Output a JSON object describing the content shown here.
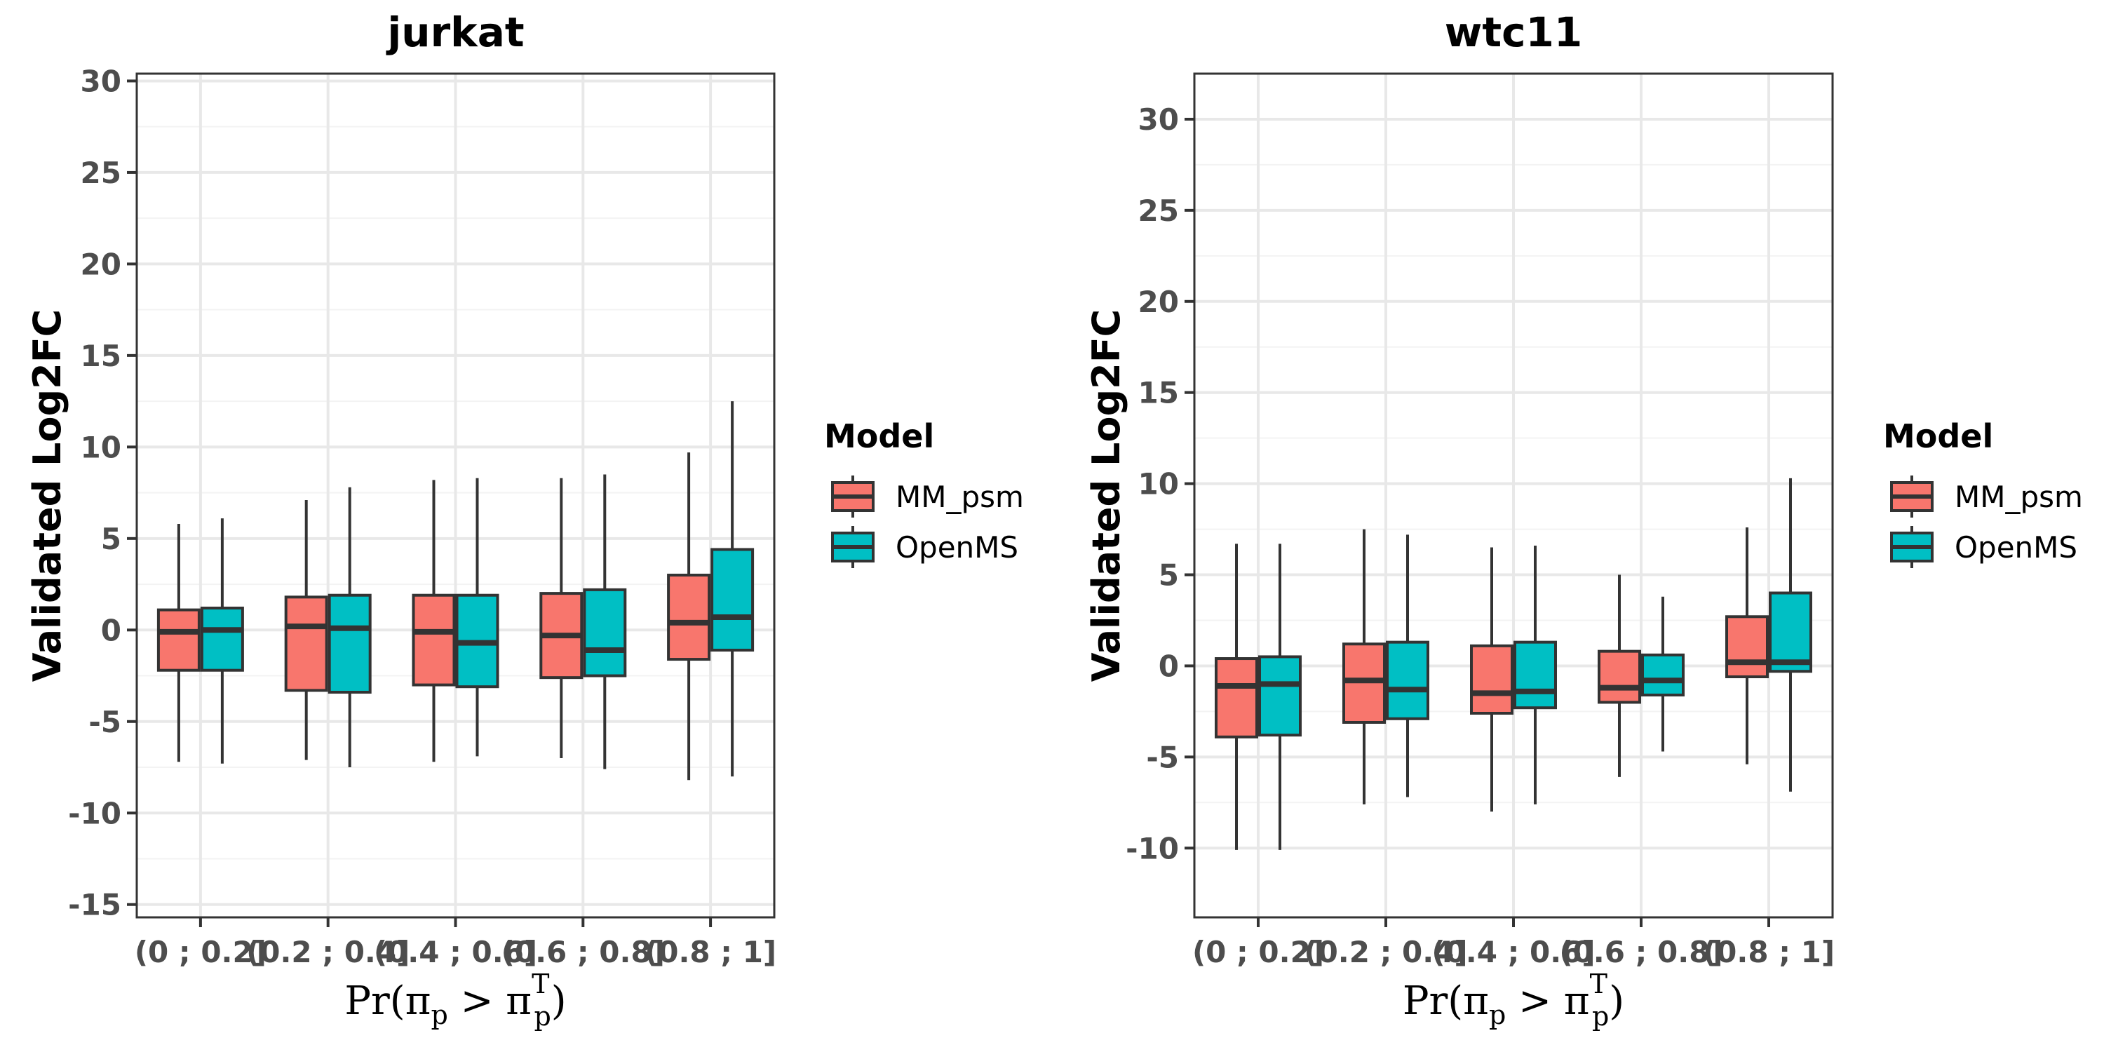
{
  "colors": {
    "MM_psm": "#F8766D",
    "OpenMS": "#00BFC4",
    "box_stroke": "#333333",
    "grid_major": "#e8e8e8",
    "grid_minor": "#f3f3f3",
    "panel_border": "#333333",
    "tick_text": "#4d4d4d"
  },
  "chart_data": [
    {
      "type": "boxplot",
      "title": "jurkat",
      "ylabel": "Validated Log2FC",
      "xlabel": {
        "main": "Pr(π",
        "sub1": "p",
        "mid": " > π",
        "sup": "T",
        "sub2": "p",
        "end": ")"
      },
      "categories": [
        "(0 ; 0.2]",
        "(0.2 ; 0.4]",
        "(0.4 ; 0.6]",
        "(0.6 ; 0.8]",
        "(0.8 ; 1]"
      ],
      "ylim": [
        -15.7,
        30.4
      ],
      "yticks": [
        -15,
        -10,
        -5,
        0,
        5,
        10,
        15,
        20,
        25,
        30
      ],
      "ytick_labels": [
        "-15",
        "-10",
        "-5",
        "0",
        "5",
        "10",
        "15",
        "20",
        "25",
        "30"
      ],
      "grid": true,
      "legend": {
        "title": "Model",
        "position": "right",
        "entries": [
          "MM_psm",
          "OpenMS"
        ]
      },
      "series": [
        {
          "name": "MM_psm",
          "boxes": [
            {
              "whisker_low": -7.2,
              "q1": -2.2,
              "median": -0.1,
              "q3": 1.1,
              "whisker_high": 5.8
            },
            {
              "whisker_low": -7.1,
              "q1": -3.3,
              "median": 0.2,
              "q3": 1.8,
              "whisker_high": 7.1
            },
            {
              "whisker_low": -7.2,
              "q1": -3.0,
              "median": -0.1,
              "q3": 1.9,
              "whisker_high": 8.2
            },
            {
              "whisker_low": -7.0,
              "q1": -2.6,
              "median": -0.3,
              "q3": 2.0,
              "whisker_high": 8.3
            },
            {
              "whisker_low": -8.2,
              "q1": -1.6,
              "median": 0.4,
              "q3": 3.0,
              "whisker_high": 9.7
            }
          ]
        },
        {
          "name": "OpenMS",
          "boxes": [
            {
              "whisker_low": -7.3,
              "q1": -2.2,
              "median": 0.0,
              "q3": 1.2,
              "whisker_high": 6.1
            },
            {
              "whisker_low": -7.5,
              "q1": -3.4,
              "median": 0.1,
              "q3": 1.9,
              "whisker_high": 7.8
            },
            {
              "whisker_low": -6.9,
              "q1": -3.1,
              "median": -0.7,
              "q3": 1.9,
              "whisker_high": 8.3
            },
            {
              "whisker_low": -7.6,
              "q1": -2.5,
              "median": -1.1,
              "q3": 2.2,
              "whisker_high": 8.5
            },
            {
              "whisker_low": -8.0,
              "q1": -1.1,
              "median": 0.7,
              "q3": 4.4,
              "whisker_high": 12.5
            }
          ]
        }
      ]
    },
    {
      "type": "boxplot",
      "title": "wtc11",
      "ylabel": "Validated Log2FC",
      "xlabel": {
        "main": "Pr(π",
        "sub1": "p",
        "mid": " > π",
        "sup": "T",
        "sub2": "p",
        "end": ")"
      },
      "categories": [
        "(0 ; 0.2]",
        "(0.2 ; 0.4]",
        "(0.4 ; 0.6]",
        "(0.6 ; 0.8]",
        "(0.8 ; 1]"
      ],
      "ylim": [
        -13.8,
        32.5
      ],
      "yticks": [
        -10,
        -5,
        0,
        5,
        10,
        15,
        20,
        25,
        30
      ],
      "ytick_labels": [
        "-10",
        "-5",
        "0",
        "5",
        "10",
        "15",
        "20",
        "25",
        "30"
      ],
      "grid": true,
      "legend": {
        "title": "Model",
        "position": "right",
        "entries": [
          "MM_psm",
          "OpenMS"
        ]
      },
      "series": [
        {
          "name": "MM_psm",
          "boxes": [
            {
              "whisker_low": -10.1,
              "q1": -3.9,
              "median": -1.1,
              "q3": 0.4,
              "whisker_high": 6.7
            },
            {
              "whisker_low": -7.6,
              "q1": -3.1,
              "median": -0.8,
              "q3": 1.2,
              "whisker_high": 7.5
            },
            {
              "whisker_low": -8.0,
              "q1": -2.6,
              "median": -1.5,
              "q3": 1.1,
              "whisker_high": 6.5
            },
            {
              "whisker_low": -6.1,
              "q1": -2.0,
              "median": -1.2,
              "q3": 0.8,
              "whisker_high": 5.0
            },
            {
              "whisker_low": -5.4,
              "q1": -0.6,
              "median": 0.2,
              "q3": 2.7,
              "whisker_high": 7.6
            }
          ]
        },
        {
          "name": "OpenMS",
          "boxes": [
            {
              "whisker_low": -10.1,
              "q1": -3.8,
              "median": -1.0,
              "q3": 0.5,
              "whisker_high": 6.7
            },
            {
              "whisker_low": -7.2,
              "q1": -2.9,
              "median": -1.3,
              "q3": 1.3,
              "whisker_high": 7.2
            },
            {
              "whisker_low": -7.6,
              "q1": -2.3,
              "median": -1.4,
              "q3": 1.3,
              "whisker_high": 6.6
            },
            {
              "whisker_low": -4.7,
              "q1": -1.6,
              "median": -0.8,
              "q3": 0.6,
              "whisker_high": 3.8
            },
            {
              "whisker_low": -6.9,
              "q1": -0.3,
              "median": 0.2,
              "q3": 4.0,
              "whisker_high": 10.3
            }
          ]
        }
      ]
    }
  ]
}
